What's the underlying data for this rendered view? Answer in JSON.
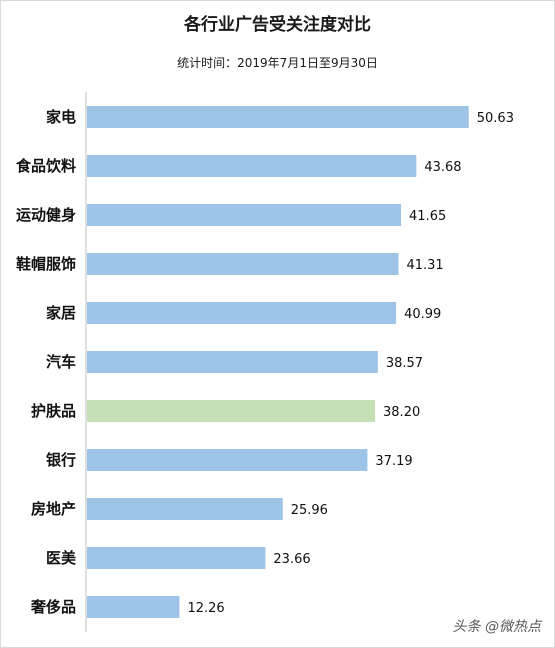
{
  "chart_data": {
    "type": "bar",
    "orientation": "horizontal",
    "title": "各行业广告受关注度对比",
    "subtitle": "统计时间：2019年7月1日至9月30日",
    "categories": [
      "家电",
      "食品饮料",
      "运动健身",
      "鞋帽服饰",
      "家居",
      "汽车",
      "护肤品",
      "银行",
      "房地产",
      "医美",
      "奢侈品"
    ],
    "values": [
      50.63,
      43.68,
      41.65,
      41.31,
      40.99,
      38.57,
      38.2,
      37.19,
      25.96,
      23.66,
      12.26
    ],
    "value_labels": [
      "50.63",
      "43.68",
      "41.65",
      "41.31",
      "40.99",
      "38.57",
      "38.20",
      "37.19",
      "25.96",
      "23.66",
      "12.26"
    ],
    "colors": {
      "default": "#9dc3e6",
      "highlight": "#c5e0b4",
      "highlight_category": "护肤品"
    },
    "grid": false,
    "legend": "none"
  },
  "watermark": "头条 @微热点"
}
